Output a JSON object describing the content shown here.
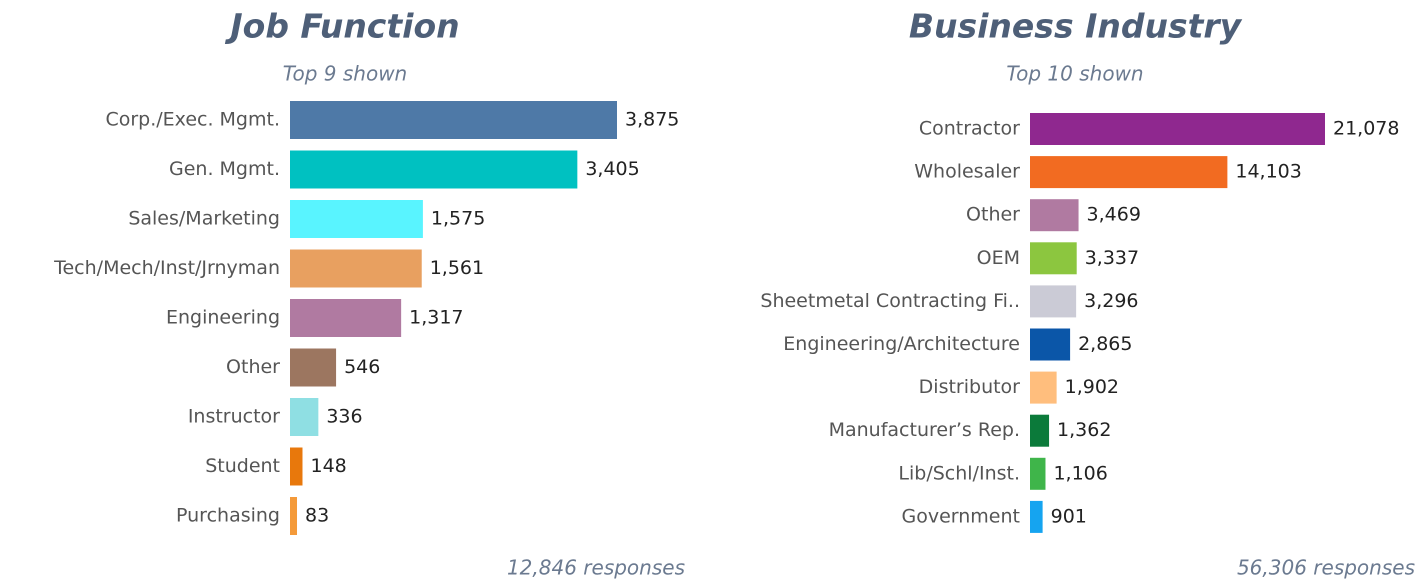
{
  "chart_data": [
    {
      "type": "bar",
      "orientation": "horizontal",
      "title": "Job Function",
      "subtitle": "Top 9 shown",
      "categories": [
        "Corp./Exec. Mgmt.",
        "Gen. Mgmt.",
        "Sales/Marketing",
        "Tech/Mech/Inst/Jrnyman",
        "Engineering",
        "Other",
        "Instructor",
        "Student",
        "Purchasing"
      ],
      "values": [
        3875,
        3405,
        1575,
        1561,
        1317,
        546,
        336,
        148,
        83
      ],
      "value_labels": [
        "3,875",
        "3,405",
        "1,575",
        "1,561",
        "1,317",
        "546",
        "336",
        "148",
        "83"
      ],
      "colors": [
        "#4e79a7",
        "#00c1c1",
        "#59f4ff",
        "#e8a060",
        "#b07aa1",
        "#9c7660",
        "#8fdfe3",
        "#e8780c",
        "#f49a3a"
      ],
      "annotation": "12,846 responses"
    },
    {
      "type": "bar",
      "orientation": "horizontal",
      "title": "Business Industry",
      "subtitle": "Top 10 shown",
      "categories": [
        "Contractor",
        "Wholesaler",
        "Other",
        "OEM",
        "Sheetmetal Contracting Fi..",
        "Engineering/Architecture",
        "Distributor",
        "Manufacturer’s Rep.",
        "Lib/Schl/Inst.",
        "Government"
      ],
      "values": [
        21078,
        14103,
        3469,
        3337,
        3296,
        2865,
        1902,
        1362,
        1106,
        901
      ],
      "value_labels": [
        "21,078",
        "14,103",
        "3,469",
        "3,337",
        "3,296",
        "2,865",
        "1,902",
        "1,362",
        "1,106",
        "901"
      ],
      "colors": [
        "#8f288f",
        "#f26b21",
        "#b07aa1",
        "#8cc63f",
        "#cbcbd6",
        "#0b56a8",
        "#ffbe7d",
        "#0b7a3a",
        "#3fb54a",
        "#15a4f0"
      ],
      "annotation": "56,306 responses"
    }
  ]
}
